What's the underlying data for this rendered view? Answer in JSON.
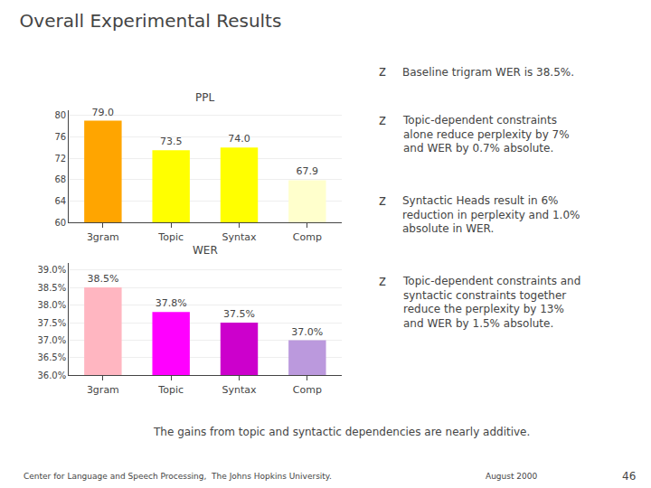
{
  "title": "Overall Experimental Results",
  "chart_data": [
    {
      "type": "bar",
      "title": "PPL",
      "categories": [
        "3gram",
        "Topic",
        "Syntax",
        "Comp"
      ],
      "values": [
        79.0,
        73.5,
        74.0,
        67.9
      ],
      "value_labels": [
        "79.0",
        "73.5",
        "74.0",
        "67.9"
      ],
      "colors": [
        "#FFA500",
        "#FFFF00",
        "#FFFF00",
        "#FFFFCC"
      ],
      "ylim": [
        60,
        81
      ],
      "yticks": [
        60,
        64,
        68,
        72,
        76,
        80
      ],
      "grid": true,
      "data_labels": true
    },
    {
      "type": "bar",
      "title": "WER",
      "categories": [
        "3gram",
        "Topic",
        "Syntax",
        "Comp"
      ],
      "values": [
        0.385,
        0.378,
        0.375,
        0.37
      ],
      "value_labels": [
        "38.5%",
        "37.8%",
        "37.5%",
        "37.0%"
      ],
      "colors": [
        "#FFB6C1",
        "#FF00FF",
        "#CC00CC",
        "#BB99DD"
      ],
      "ylim": [
        0.36,
        0.392
      ],
      "yticks": [
        {
          "value": 0.36,
          "label": "36.0%"
        },
        {
          "value": 0.365,
          "label": "36.5%"
        },
        {
          "value": 0.37,
          "label": "37.0%"
        },
        {
          "value": 0.375,
          "label": "37.5%"
        },
        {
          "value": 0.38,
          "label": "38.0%"
        },
        {
          "value": 0.385,
          "label": "38.5%"
        },
        {
          "value": 0.39,
          "label": "39.0%"
        }
      ],
      "grid": true,
      "data_labels": true
    }
  ],
  "annotations": [
    "z",
    "Baseline trigram WER is 38.5%.",
    "z",
    "Topic-dependent constraints\nalone reduce perplexity by 7%\nand WER by 0.7% absolute.",
    "z",
    "Syntactic Heads result in 6%\nreduction in perplexity and 1.0%\nabsolute in WER.",
    "z",
    "Topic-dependent constraints and\nsyntactic constraints together\nreduce the perplexity by 13%\nand WER by 1.5% absolute.",
    "The gains from topic and syntactic dependencies are nearly additive.",
    "Center for Language and Speech Processing,  The Johns Hopkins University.",
    "August 2000",
    "46"
  ]
}
